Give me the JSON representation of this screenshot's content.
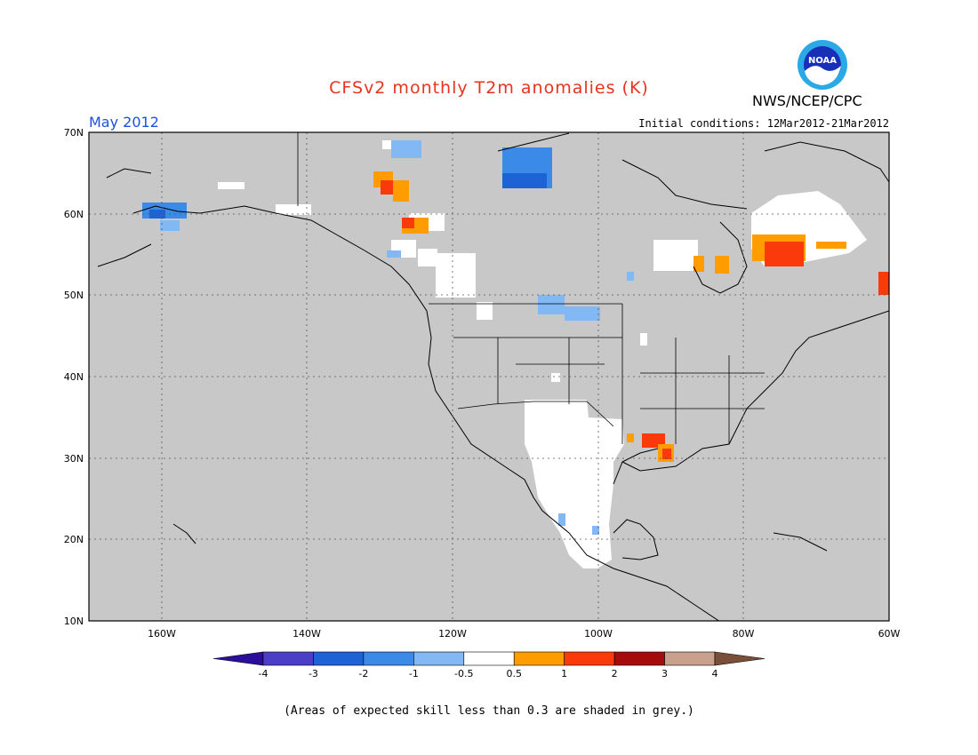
{
  "title": "CFSv2 monthly T2m anomalies (K)",
  "month": "May 2012",
  "initial_conditions": "Initial conditions: 12Mar2012-21Mar2012",
  "agency": "NWS/NCEP/CPC",
  "logo_text": "NOAA",
  "footnote": "(Areas of expected skill less than 0.3 are shaded in grey.)",
  "colors": {
    "skill_grey": "#c8c8c8",
    "land_white": "#ffffff",
    "outline": "#000000",
    "title_red": "#e8331c",
    "month_blue": "#1e50e0"
  },
  "map": {
    "lon_range": [
      -172,
      -60
    ],
    "lat_range": [
      10,
      70
    ],
    "lat_labels": [
      "70N",
      "60N",
      "50N",
      "40N",
      "30N",
      "20N",
      "10N"
    ],
    "lon_labels": [
      "160W",
      "140W",
      "120W",
      "100W",
      "80W",
      "60W"
    ],
    "gridlines": "dotted"
  },
  "colorbar": {
    "labels": [
      "-4",
      "-3",
      "-2",
      "-1",
      "-0.5",
      "0.5",
      "1",
      "2",
      "3",
      "4"
    ],
    "colors": [
      "#2b0f9c",
      "#4a3fc6",
      "#1d63d6",
      "#3b8ae8",
      "#82b8f4",
      "#ffffff",
      "#ff9d00",
      "#fa3a0a",
      "#a50b0b",
      "#c9a08c",
      "#7a4f3a"
    ]
  },
  "anomaly_regions": [
    {
      "name": "Alaska southwest",
      "category": "-1",
      "color": "#3b8ae8"
    },
    {
      "name": "Northwest Territories",
      "category": "-2",
      "color": "#1d63d6"
    },
    {
      "name": "Yukon",
      "category": "1",
      "color": "#fa3a0a"
    },
    {
      "name": "Northern Plains",
      "category": "-0.5",
      "color": "#82b8f4"
    },
    {
      "name": "Quebec",
      "category": "2",
      "color": "#fa3a0a"
    },
    {
      "name": "Louisiana",
      "category": "2",
      "color": "#fa3a0a"
    },
    {
      "name": "Newfoundland",
      "category": "2",
      "color": "#fa3a0a"
    }
  ]
}
